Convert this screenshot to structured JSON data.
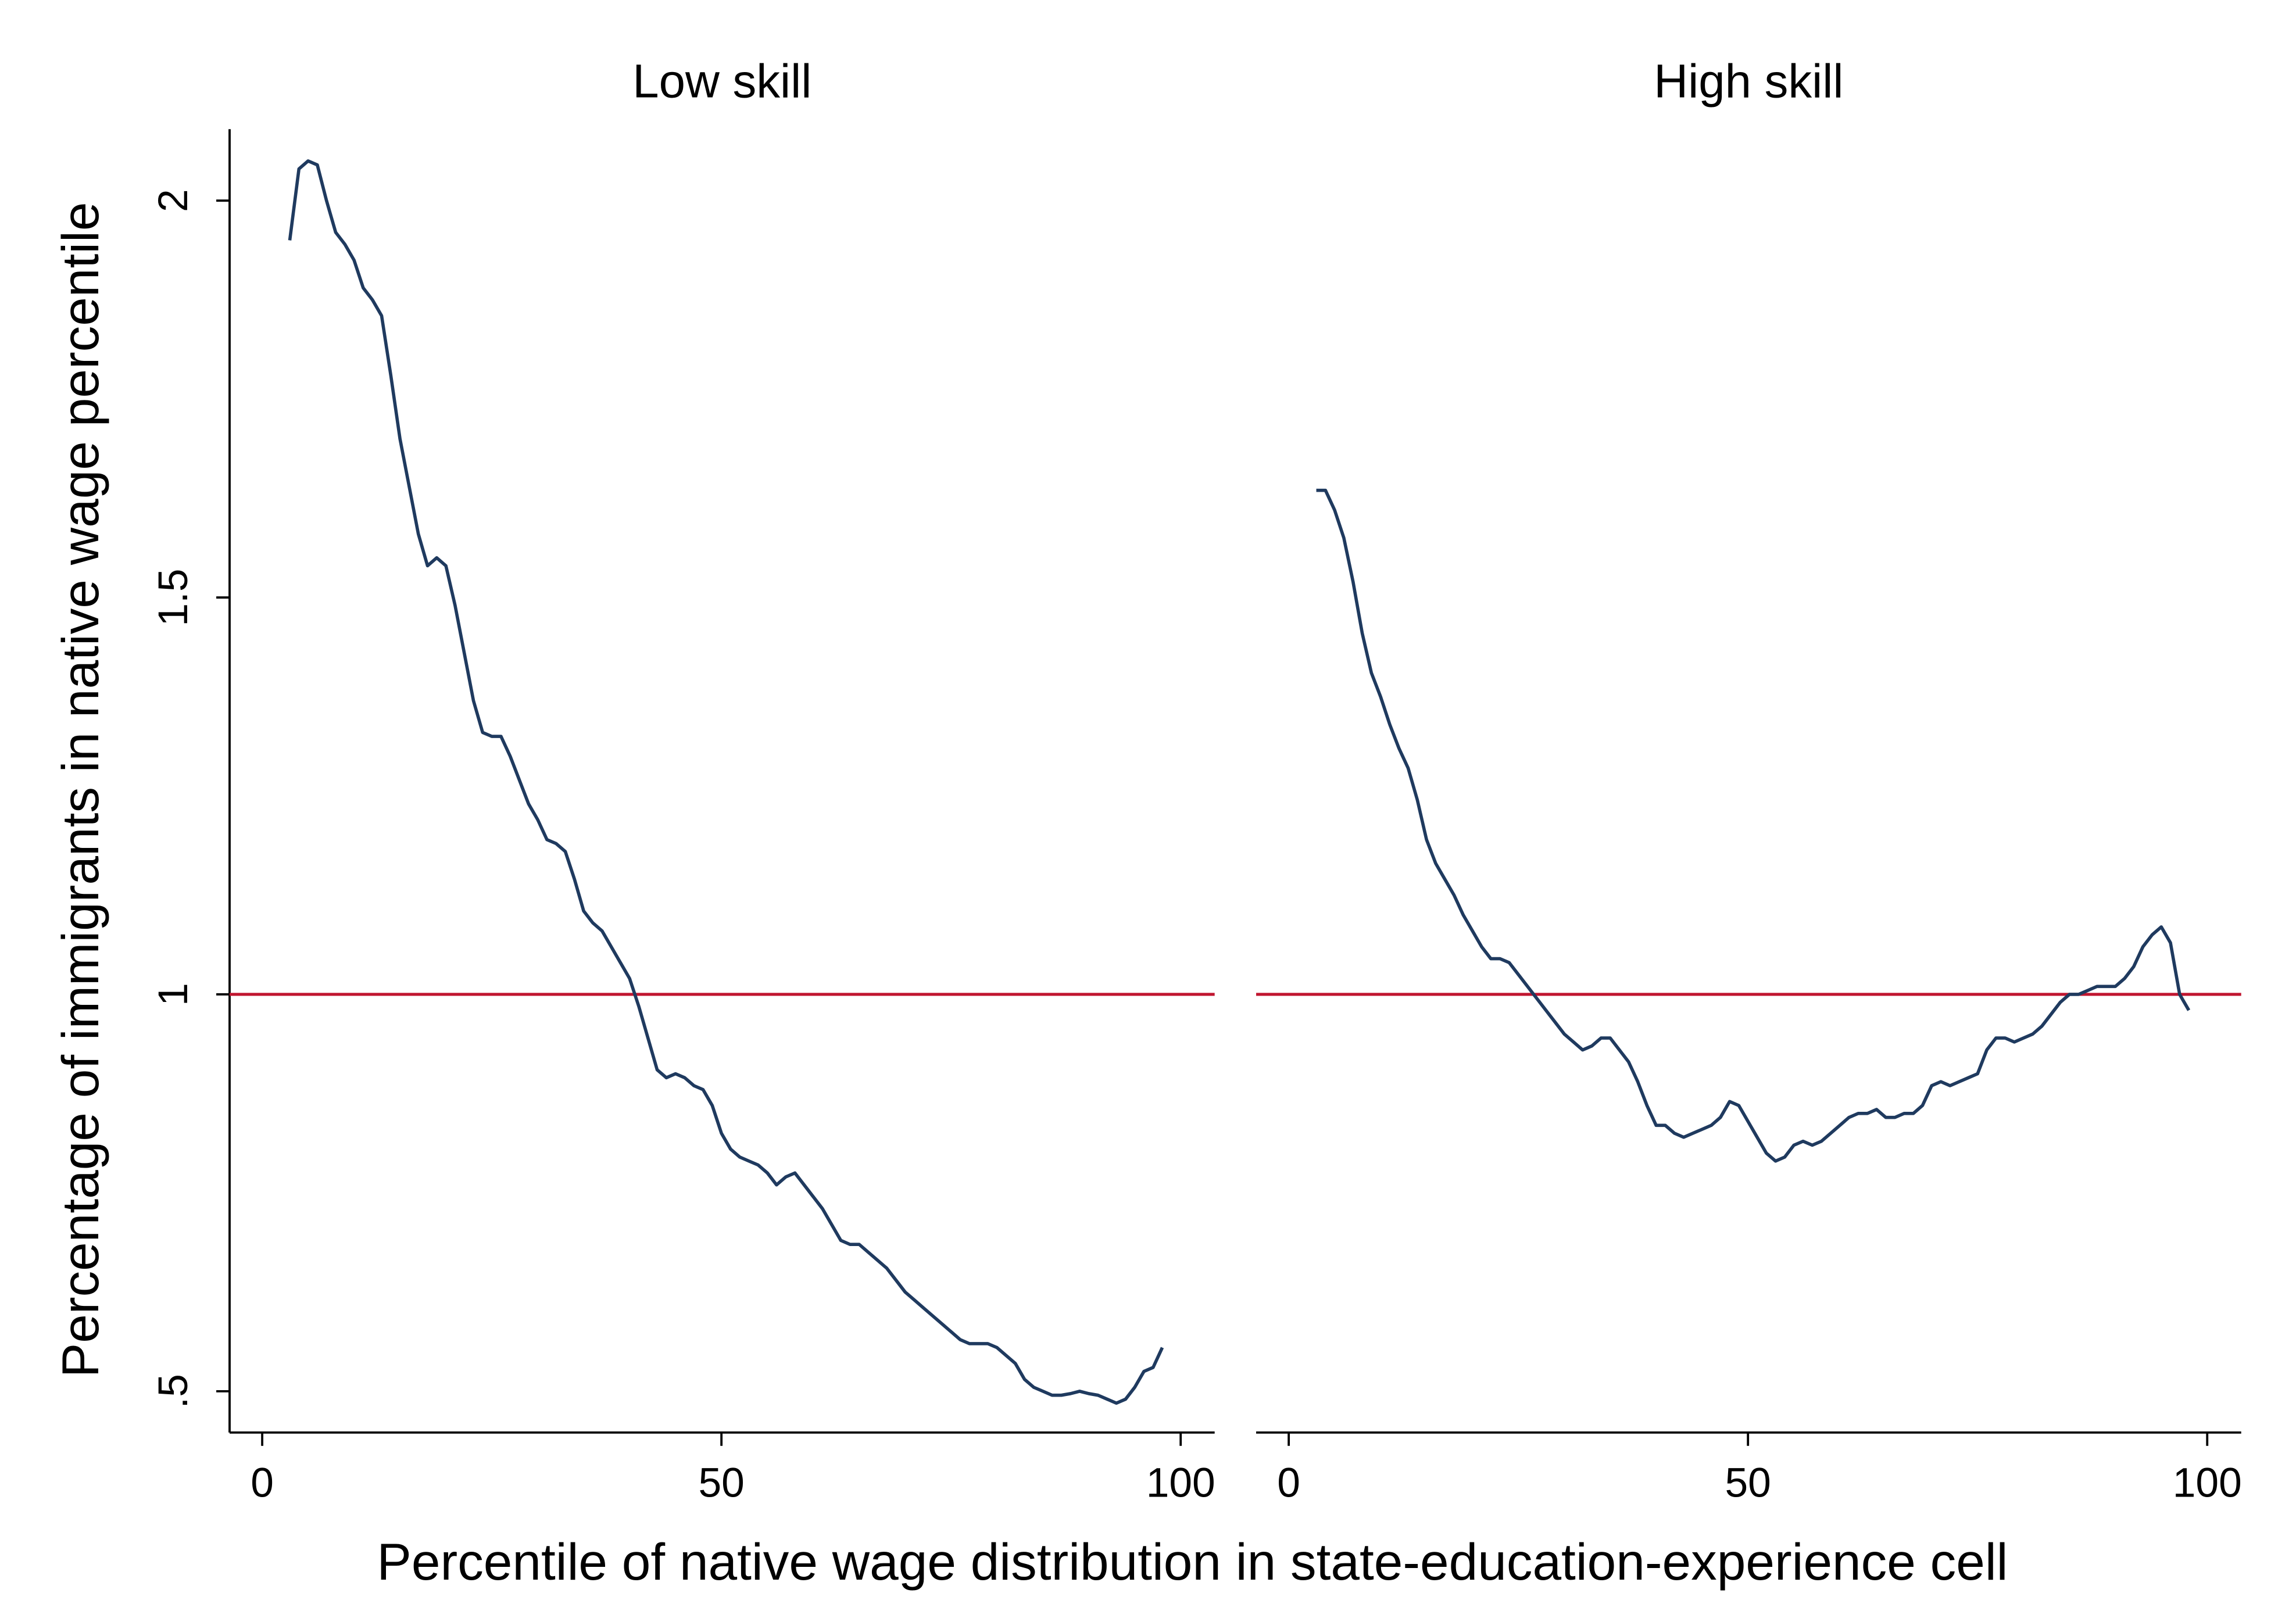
{
  "chart_data": [
    {
      "type": "line",
      "title": "Low skill",
      "ylabel": "Percentage of immigrants in native wage percentile",
      "xlabel": "Percentile of native wage distribution in state-education-experience cell",
      "x": [
        3,
        4,
        5,
        6,
        7,
        8,
        9,
        10,
        11,
        12,
        13,
        14,
        15,
        16,
        17,
        18,
        19,
        20,
        21,
        22,
        23,
        24,
        25,
        26,
        27,
        28,
        29,
        30,
        31,
        32,
        33,
        34,
        35,
        36,
        37,
        38,
        39,
        40,
        41,
        42,
        43,
        44,
        45,
        46,
        47,
        48,
        49,
        50,
        51,
        52,
        53,
        54,
        55,
        56,
        57,
        58,
        59,
        60,
        61,
        62,
        63,
        64,
        65,
        66,
        67,
        68,
        69,
        70,
        71,
        72,
        73,
        74,
        75,
        76,
        77,
        78,
        79,
        80,
        81,
        82,
        83,
        84,
        85,
        86,
        87,
        88,
        89,
        90,
        91,
        92,
        93,
        94,
        95,
        96,
        97,
        98
      ],
      "series": [
        {
          "color": "#1f3a5f",
          "values": [
            1.95,
            2.04,
            2.05,
            2.045,
            2.0,
            1.96,
            1.945,
            1.925,
            1.89,
            1.875,
            1.855,
            1.78,
            1.7,
            1.64,
            1.58,
            1.54,
            1.55,
            1.54,
            1.49,
            1.43,
            1.37,
            1.33,
            1.325,
            1.325,
            1.3,
            1.27,
            1.24,
            1.22,
            1.195,
            1.19,
            1.18,
            1.145,
            1.105,
            1.09,
            1.08,
            1.06,
            1.04,
            1.02,
            0.985,
            0.945,
            0.905,
            0.895,
            0.9,
            0.895,
            0.885,
            0.88,
            0.86,
            0.825,
            0.805,
            0.795,
            0.79,
            0.785,
            0.775,
            0.76,
            0.77,
            0.775,
            0.76,
            0.745,
            0.73,
            0.71,
            0.69,
            0.685,
            0.685,
            0.675,
            0.665,
            0.655,
            0.64,
            0.625,
            0.615,
            0.605,
            0.595,
            0.585,
            0.575,
            0.565,
            0.56,
            0.56,
            0.56,
            0.555,
            0.545,
            0.535,
            0.515,
            0.505,
            0.5,
            0.495,
            0.495,
            0.497,
            0.5,
            0.497,
            0.495,
            0.49,
            0.485,
            0.49,
            0.505,
            0.525,
            0.53,
            0.555
          ]
        }
      ],
      "hline": 1,
      "hline_color": "#c0152f",
      "xlim": [
        -3.55,
        103.7
      ],
      "xticks": [
        0,
        50,
        100
      ],
      "ylim": [
        0.448,
        2.09
      ],
      "yticks": [
        {
          "value": 0.5,
          "label": ".5"
        },
        1,
        1.5,
        2
      ]
    },
    {
      "type": "line",
      "title": "High skill",
      "x": [
        3,
        4,
        5,
        6,
        7,
        8,
        9,
        10,
        11,
        12,
        13,
        14,
        15,
        16,
        17,
        18,
        19,
        20,
        21,
        22,
        23,
        24,
        25,
        26,
        27,
        28,
        29,
        30,
        31,
        32,
        33,
        34,
        35,
        36,
        37,
        38,
        39,
        40,
        41,
        42,
        43,
        44,
        45,
        46,
        47,
        48,
        49,
        50,
        51,
        52,
        53,
        54,
        55,
        56,
        57,
        58,
        59,
        60,
        61,
        62,
        63,
        64,
        65,
        66,
        67,
        68,
        69,
        70,
        71,
        72,
        73,
        74,
        75,
        76,
        77,
        78,
        79,
        80,
        81,
        82,
        83,
        84,
        85,
        86,
        87,
        88,
        89,
        90,
        91,
        92,
        93,
        94,
        95,
        96,
        97,
        98
      ],
      "series": [
        {
          "color": "#1f3a5f",
          "values": [
            1.635,
            1.635,
            1.61,
            1.575,
            1.52,
            1.455,
            1.405,
            1.375,
            1.34,
            1.31,
            1.285,
            1.245,
            1.195,
            1.165,
            1.145,
            1.125,
            1.1,
            1.08,
            1.06,
            1.045,
            1.045,
            1.04,
            1.025,
            1.01,
            0.995,
            0.98,
            0.965,
            0.95,
            0.94,
            0.93,
            0.935,
            0.945,
            0.945,
            0.93,
            0.915,
            0.89,
            0.86,
            0.835,
            0.835,
            0.825,
            0.82,
            0.825,
            0.83,
            0.835,
            0.845,
            0.865,
            0.86,
            0.84,
            0.82,
            0.8,
            0.79,
            0.795,
            0.81,
            0.815,
            0.81,
            0.815,
            0.825,
            0.835,
            0.845,
            0.85,
            0.85,
            0.855,
            0.845,
            0.845,
            0.85,
            0.85,
            0.86,
            0.885,
            0.89,
            0.885,
            0.89,
            0.895,
            0.9,
            0.93,
            0.945,
            0.945,
            0.94,
            0.945,
            0.95,
            0.96,
            0.975,
            0.99,
            1.0,
            1.0,
            1.005,
            1.01,
            1.01,
            1.01,
            1.02,
            1.035,
            1.06,
            1.075,
            1.085,
            1.065,
            1.0,
            0.98
          ]
        }
      ],
      "hline": 1,
      "hline_color": "#c0152f",
      "xlim": [
        -3.55,
        103.7
      ],
      "xticks": [
        0,
        50,
        100
      ],
      "ylim": [
        0.448,
        2.09
      ]
    }
  ]
}
